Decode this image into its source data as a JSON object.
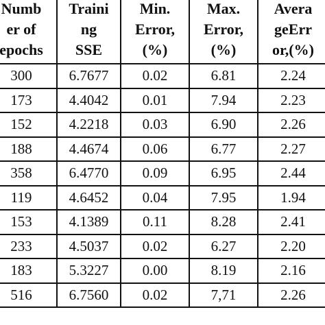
{
  "table": {
    "headers": [
      [
        "Numb",
        "er of",
        "epochs"
      ],
      [
        "Traini",
        "ng",
        "SSE"
      ],
      [
        "Min.",
        "Error,",
        "(%)"
      ],
      [
        "Max.",
        "Error,",
        "(%)"
      ],
      [
        "Avera",
        "geErr",
        "or,(%)"
      ]
    ],
    "rows": [
      [
        "300",
        "6.7677",
        "0.02",
        "6.81",
        "2.24"
      ],
      [
        "173",
        "4.4042",
        "0.01",
        "7.94",
        "2.23"
      ],
      [
        "152",
        "4.2218",
        "0.03",
        "6.90",
        "2.26"
      ],
      [
        "188",
        "4.4674",
        "0.06",
        "6.77",
        "2.27"
      ],
      [
        "358",
        "6.4770",
        "0.09",
        "6.95",
        "2.44"
      ],
      [
        "119",
        "4.6452",
        "0.04",
        "7.95",
        "1.94"
      ],
      [
        "153",
        "4.1389",
        "0.11",
        "8.28",
        "2.41"
      ],
      [
        "233",
        "4.5037",
        "0.02",
        "6.27",
        "2.20"
      ],
      [
        "183",
        "5.3227",
        "0.00",
        "8.19",
        "2.16"
      ],
      [
        "516",
        "6.7560",
        "0.02",
        "7,71",
        "2.26"
      ]
    ]
  }
}
